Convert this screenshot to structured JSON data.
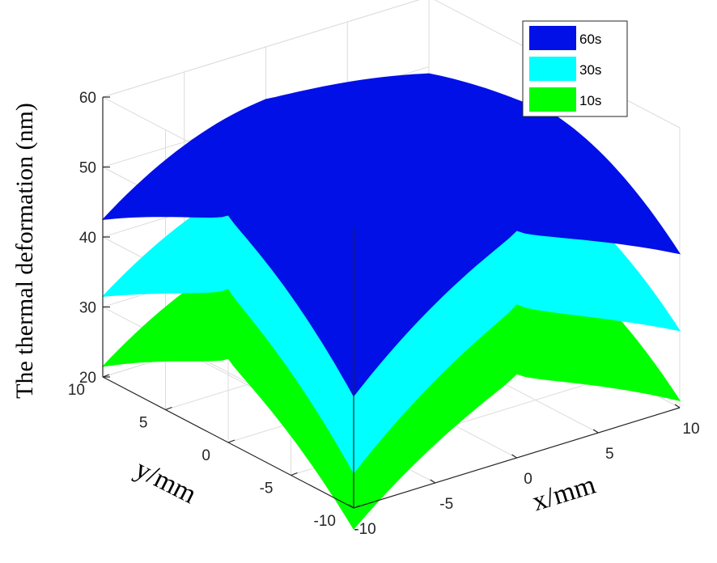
{
  "chart_data": {
    "type": "surface3d",
    "title": "",
    "xlabel": "x/mm",
    "ylabel": "y/mm",
    "zlabel": "The thermal deformation (nm)",
    "xlim": [
      -10,
      10
    ],
    "ylim": [
      -10,
      10
    ],
    "zlim": [
      20,
      60
    ],
    "x_ticks": [
      "-10",
      "-5",
      "0",
      "5",
      "10"
    ],
    "y_ticks": [
      "-10",
      "-5",
      "0",
      "5",
      "10"
    ],
    "z_ticks": [
      "20",
      "30",
      "40",
      "50",
      "60"
    ],
    "grid": true,
    "legend_position": "top-right",
    "series": [
      {
        "name": "60s",
        "color": "#0010e6",
        "center": 58,
        "edge_mid": 47,
        "corner_near": 36,
        "corner_far": 49,
        "corner_left": 42.5,
        "corner_right": 42
      },
      {
        "name": "30s",
        "color": "#00ffff",
        "center": 47,
        "edge_mid": 37,
        "corner_near": 25,
        "corner_far": 38,
        "corner_left": 31.5,
        "corner_right": 31
      },
      {
        "name": "10s",
        "color": "#00ff00",
        "center": 37,
        "edge_mid": 27,
        "corner_near": 17,
        "corner_far": 28,
        "corner_left": 21.5,
        "corner_right": 21
      }
    ]
  }
}
